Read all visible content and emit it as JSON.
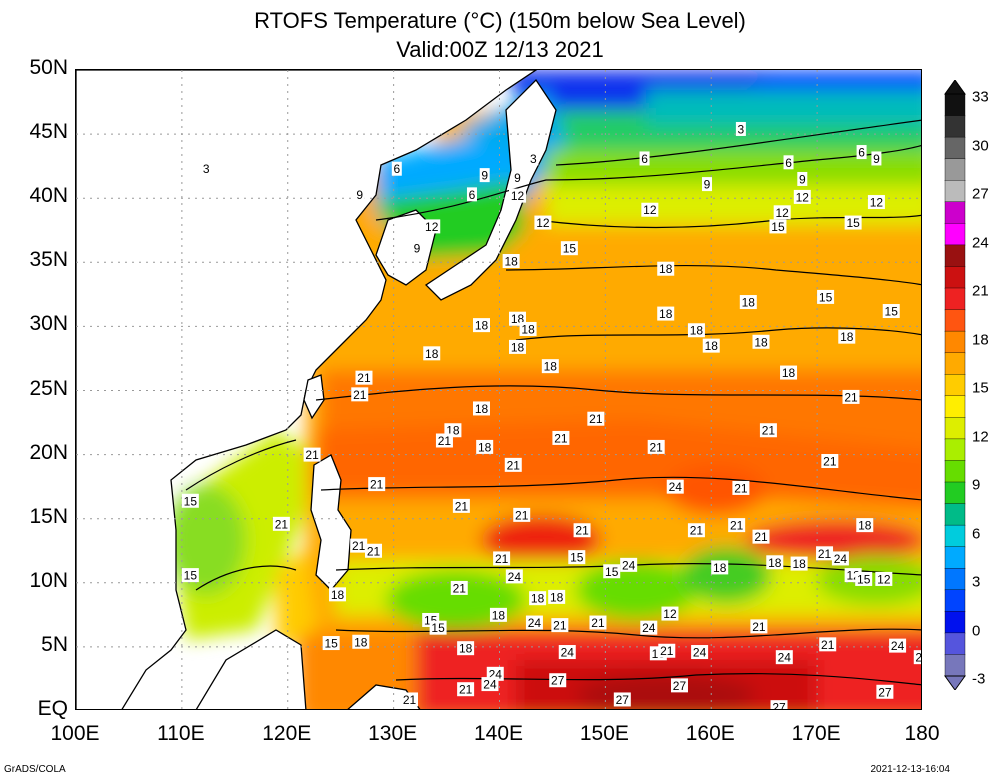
{
  "title": {
    "line1": "RTOFS Temperature (°C) (150m below Sea Level)",
    "line2": "Valid:00Z 12/13 2021"
  },
  "lat_labels": [
    "50N",
    "45N",
    "40N",
    "35N",
    "30N",
    "25N",
    "20N",
    "15N",
    "10N",
    "5N",
    "EQ"
  ],
  "lon_labels": [
    "100E",
    "110E",
    "120E",
    "130E",
    "140E",
    "150E",
    "160E",
    "170E",
    "180"
  ],
  "colorbar": {
    "labels": [
      "33",
      "30",
      "27",
      "24",
      "21",
      "18",
      "15",
      "12",
      "9",
      "6",
      "3",
      "0",
      "-3"
    ],
    "colors": [
      "#111111",
      "#333333",
      "#666666",
      "#999999",
      "#bbbbbb",
      "#cc00cc",
      "#ff00ff",
      "#991111",
      "#cc1111",
      "#ee2222",
      "#ff5511",
      "#ff8800",
      "#ffaa00",
      "#ffcc00",
      "#ffee00",
      "#ddee00",
      "#aaee00",
      "#66dd00",
      "#22cc22",
      "#00bb88",
      "#00ccdd",
      "#00aaff",
      "#0077ff",
      "#0044ff",
      "#0011ee",
      "#5555dd",
      "#7777bb"
    ]
  },
  "contour_labels": [
    {
      "text": "3",
      "lon": 112.3,
      "lat": 42.3
    },
    {
      "text": "6",
      "lon": 130.3,
      "lat": 42.3
    },
    {
      "text": "9",
      "lon": 138.6,
      "lat": 41.8
    },
    {
      "text": "3",
      "lon": 143.2,
      "lat": 43.1
    },
    {
      "text": "6",
      "lon": 153.7,
      "lat": 43.1
    },
    {
      "text": "6",
      "lon": 167.3,
      "lat": 42.8
    },
    {
      "text": "6",
      "lon": 174.2,
      "lat": 43.6
    },
    {
      "text": "9",
      "lon": 175.6,
      "lat": 43.1
    },
    {
      "text": "3",
      "lon": 162.8,
      "lat": 45.4
    },
    {
      "text": "9",
      "lon": 126.8,
      "lat": 40.3
    },
    {
      "text": "6",
      "lon": 137.4,
      "lat": 40.3
    },
    {
      "text": "9",
      "lon": 141.7,
      "lat": 41.6
    },
    {
      "text": "12",
      "lon": 141.7,
      "lat": 40.2
    },
    {
      "text": "9",
      "lon": 159.6,
      "lat": 41.1
    },
    {
      "text": "9",
      "lon": 168.6,
      "lat": 41.5
    },
    {
      "text": "12",
      "lon": 168.6,
      "lat": 40.1
    },
    {
      "text": "12",
      "lon": 175.6,
      "lat": 39.7
    },
    {
      "text": "12",
      "lon": 133.6,
      "lat": 37.8
    },
    {
      "text": "12",
      "lon": 144.1,
      "lat": 38.1
    },
    {
      "text": "12",
      "lon": 154.2,
      "lat": 39.1
    },
    {
      "text": "12",
      "lon": 166.7,
      "lat": 38.9
    },
    {
      "text": "15",
      "lon": 166.3,
      "lat": 37.8
    },
    {
      "text": "15",
      "lon": 173.4,
      "lat": 38.1
    },
    {
      "text": "9",
      "lon": 132.2,
      "lat": 36.1
    },
    {
      "text": "15",
      "lon": 146.6,
      "lat": 36.1
    },
    {
      "text": "18",
      "lon": 141.1,
      "lat": 35.1
    },
    {
      "text": "18",
      "lon": 155.7,
      "lat": 34.5
    },
    {
      "text": "18",
      "lon": 163.5,
      "lat": 31.9
    },
    {
      "text": "15",
      "lon": 170.8,
      "lat": 32.3
    },
    {
      "text": "15",
      "lon": 177.0,
      "lat": 31.2
    },
    {
      "text": "18",
      "lon": 155.7,
      "lat": 31.0
    },
    {
      "text": "18",
      "lon": 138.3,
      "lat": 30.1
    },
    {
      "text": "18",
      "lon": 141.7,
      "lat": 30.6
    },
    {
      "text": "18",
      "lon": 142.7,
      "lat": 29.8
    },
    {
      "text": "18",
      "lon": 158.6,
      "lat": 29.7
    },
    {
      "text": "18",
      "lon": 172.8,
      "lat": 29.2
    },
    {
      "text": "18",
      "lon": 141.7,
      "lat": 28.4
    },
    {
      "text": "18",
      "lon": 160.0,
      "lat": 28.5
    },
    {
      "text": "18",
      "lon": 164.7,
      "lat": 28.8
    },
    {
      "text": "18",
      "lon": 133.6,
      "lat": 27.9
    },
    {
      "text": "18",
      "lon": 144.8,
      "lat": 26.9
    },
    {
      "text": "18",
      "lon": 167.3,
      "lat": 26.4
    },
    {
      "text": "21",
      "lon": 127.2,
      "lat": 26.0
    },
    {
      "text": "21",
      "lon": 126.8,
      "lat": 24.7
    },
    {
      "text": "21",
      "lon": 173.2,
      "lat": 24.5
    },
    {
      "text": "18",
      "lon": 138.3,
      "lat": 23.6
    },
    {
      "text": "21",
      "lon": 149.1,
      "lat": 22.8
    },
    {
      "text": "18",
      "lon": 135.6,
      "lat": 21.9
    },
    {
      "text": "21",
      "lon": 134.8,
      "lat": 21.1
    },
    {
      "text": "21",
      "lon": 145.8,
      "lat": 21.3
    },
    {
      "text": "18",
      "lon": 138.6,
      "lat": 20.6
    },
    {
      "text": "21",
      "lon": 154.8,
      "lat": 20.6
    },
    {
      "text": "21",
      "lon": 165.4,
      "lat": 21.9
    },
    {
      "text": "21",
      "lon": 122.3,
      "lat": 20.0
    },
    {
      "text": "21",
      "lon": 141.3,
      "lat": 19.2
    },
    {
      "text": "21",
      "lon": 171.2,
      "lat": 19.5
    },
    {
      "text": "21",
      "lon": 128.4,
      "lat": 17.7
    },
    {
      "text": "24",
      "lon": 156.6,
      "lat": 17.5
    },
    {
      "text": "21",
      "lon": 162.8,
      "lat": 17.4
    },
    {
      "text": "21",
      "lon": 136.4,
      "lat": 16.0
    },
    {
      "text": "21",
      "lon": 142.1,
      "lat": 15.3
    },
    {
      "text": "21",
      "lon": 162.4,
      "lat": 14.5
    },
    {
      "text": "18",
      "lon": 174.5,
      "lat": 14.5
    },
    {
      "text": "15",
      "lon": 110.8,
      "lat": 16.4
    },
    {
      "text": "21",
      "lon": 119.4,
      "lat": 14.6
    },
    {
      "text": "21",
      "lon": 147.8,
      "lat": 14.1
    },
    {
      "text": "21",
      "lon": 158.6,
      "lat": 14.1
    },
    {
      "text": "21",
      "lon": 164.7,
      "lat": 13.6
    },
    {
      "text": "21",
      "lon": 126.7,
      "lat": 12.9
    },
    {
      "text": "21",
      "lon": 128.1,
      "lat": 12.5
    },
    {
      "text": "21",
      "lon": 140.2,
      "lat": 11.9
    },
    {
      "text": "24",
      "lon": 152.2,
      "lat": 11.4
    },
    {
      "text": "24",
      "lon": 141.4,
      "lat": 10.5
    },
    {
      "text": "18",
      "lon": 160.8,
      "lat": 11.2
    },
    {
      "text": "15",
      "lon": 147.3,
      "lat": 12.0
    },
    {
      "text": "18",
      "lon": 166.0,
      "lat": 11.6
    },
    {
      "text": "24",
      "lon": 172.2,
      "lat": 11.9
    },
    {
      "text": "21",
      "lon": 170.7,
      "lat": 12.3
    },
    {
      "text": "21",
      "lon": 136.2,
      "lat": 9.6
    },
    {
      "text": "15",
      "lon": 150.6,
      "lat": 10.9
    },
    {
      "text": "18",
      "lon": 124.7,
      "lat": 9.1
    },
    {
      "text": "15",
      "lon": 110.8,
      "lat": 10.6
    },
    {
      "text": "18",
      "lon": 143.6,
      "lat": 8.8
    },
    {
      "text": "18",
      "lon": 145.4,
      "lat": 8.9
    },
    {
      "text": "18",
      "lon": 168.3,
      "lat": 11.5
    },
    {
      "text": "12",
      "lon": 173.4,
      "lat": 10.6
    },
    {
      "text": "15",
      "lon": 174.4,
      "lat": 10.3
    },
    {
      "text": "12",
      "lon": 176.3,
      "lat": 10.3
    },
    {
      "text": "15",
      "lon": 133.5,
      "lat": 7.1
    },
    {
      "text": "24",
      "lon": 143.3,
      "lat": 6.9
    },
    {
      "text": "18",
      "lon": 139.9,
      "lat": 7.5
    },
    {
      "text": "15",
      "lon": 134.2,
      "lat": 6.5
    },
    {
      "text": "12",
      "lon": 156.1,
      "lat": 7.6
    },
    {
      "text": "24",
      "lon": 154.1,
      "lat": 6.5
    },
    {
      "text": "21",
      "lon": 149.3,
      "lat": 6.9
    },
    {
      "text": "21",
      "lon": 164.5,
      "lat": 6.6
    },
    {
      "text": "18",
      "lon": 126.9,
      "lat": 5.4
    },
    {
      "text": "21",
      "lon": 145.7,
      "lat": 6.7
    },
    {
      "text": "18",
      "lon": 136.8,
      "lat": 4.9
    },
    {
      "text": "15",
      "lon": 124.1,
      "lat": 5.3
    },
    {
      "text": "21",
      "lon": 171.0,
      "lat": 5.2
    },
    {
      "text": "24",
      "lon": 177.6,
      "lat": 5.1
    },
    {
      "text": "24",
      "lon": 146.4,
      "lat": 4.6
    },
    {
      "text": "18",
      "lon": 155.0,
      "lat": 4.5
    },
    {
      "text": "21",
      "lon": 155.8,
      "lat": 4.7
    },
    {
      "text": "24",
      "lon": 158.9,
      "lat": 4.6
    },
    {
      "text": "24",
      "lon": 166.9,
      "lat": 4.2
    },
    {
      "text": "24",
      "lon": 139.6,
      "lat": 2.9
    },
    {
      "text": "2",
      "lon": 179.6,
      "lat": 4.2
    },
    {
      "text": "27",
      "lon": 145.5,
      "lat": 2.4
    },
    {
      "text": "21",
      "lon": 136.8,
      "lat": 1.7
    },
    {
      "text": "24",
      "lon": 139.1,
      "lat": 2.1
    },
    {
      "text": "27",
      "lon": 157.0,
      "lat": 2.0
    },
    {
      "text": "27",
      "lon": 176.4,
      "lat": 1.5
    },
    {
      "text": "21",
      "lon": 131.5,
      "lat": 0.9
    },
    {
      "text": "27",
      "lon": 151.6,
      "lat": 0.9
    },
    {
      "text": "27",
      "lon": 166.4,
      "lat": 0.3
    }
  ],
  "footer": {
    "left": "GrADS/COLA",
    "right": "2021-12-13-16:04"
  }
}
